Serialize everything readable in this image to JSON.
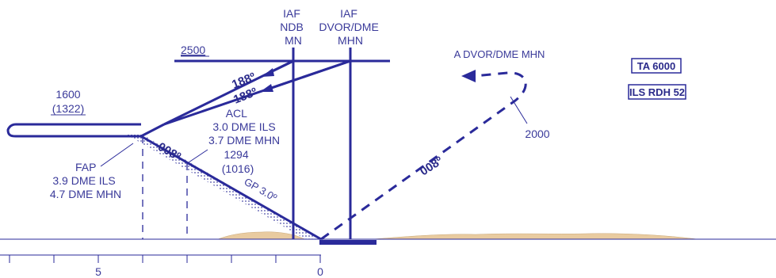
{
  "fixes": {
    "iaf_ndb": [
      "IAF",
      "NDB",
      "MN"
    ],
    "iaf_dvor": [
      "IAF",
      "DVOR/DME",
      "MHN"
    ],
    "fap": [
      "FAP",
      "3.9 DME ILS",
      "4.7 DME MHN"
    ],
    "acl": [
      "ACL",
      "3.0 DME ILS",
      "3.7 DME MHN",
      "1294",
      "(1016)"
    ]
  },
  "altitudes": {
    "initial": "2500",
    "fap_alt": "1600",
    "fap_hat": "(1322)",
    "missed": "2000"
  },
  "courses": {
    "outbound_upper": "188º",
    "outbound_lower": "188º",
    "final": "008º",
    "missed": "008º"
  },
  "glidepath": "GP 3.0º",
  "missed_approach_fix": "A DVOR/DME MHN",
  "boxes": {
    "ta": "TA 6000",
    "rdh": "ILS RDH 52"
  },
  "scale": {
    "labels": [
      "5",
      "0"
    ]
  },
  "colors": {
    "ink": "#2a2a9a",
    "terrain": "#e9cba0",
    "glideslope_dots": "#4a4aa8"
  }
}
